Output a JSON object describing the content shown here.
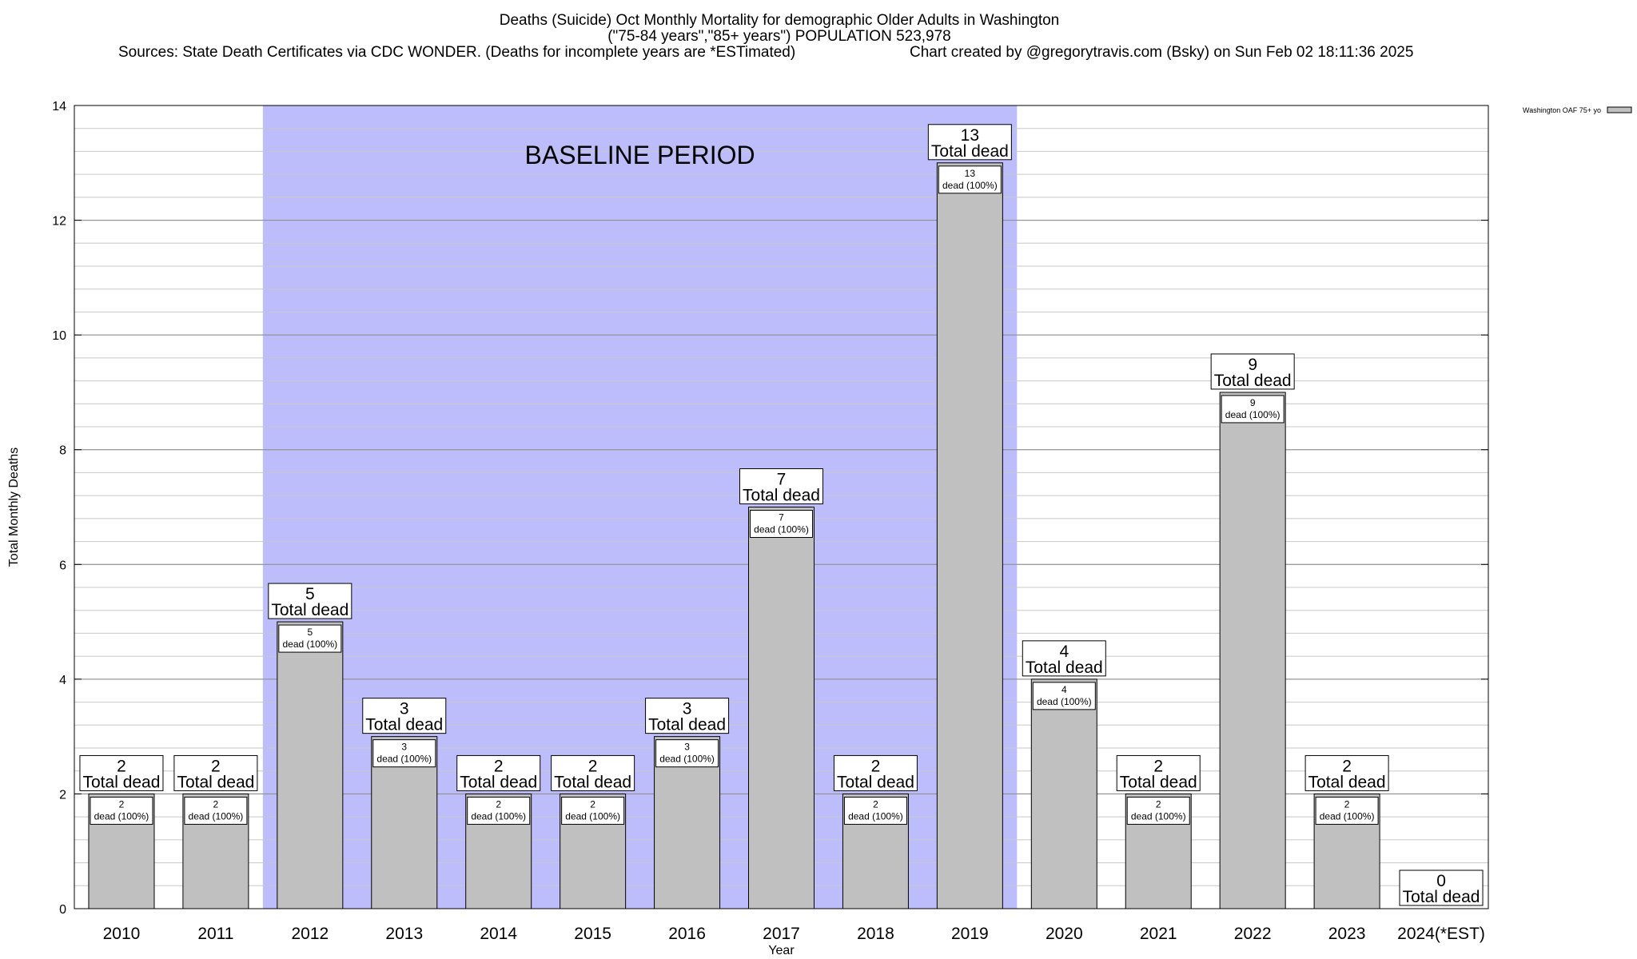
{
  "chart_data": {
    "type": "bar",
    "title_lines": [
      "Deaths (Suicide) Oct Monthly Mortality for demographic Older Adults in Washington",
      "(\"75-84 years\",\"85+ years\") POPULATION 523,978"
    ],
    "sources_text": "Sources: State Death Certificates via CDC WONDER. (Deaths for incomplete years are *ESTimated)",
    "credit_text": "Chart created by @gregorytravis.com (Bsky) on Sun Feb 02 18:11:36 2025",
    "xlabel": "Year",
    "ylabel": "Total Monthly Deaths",
    "ylim": [
      0,
      14
    ],
    "y_ticks": [
      0,
      2,
      4,
      6,
      8,
      10,
      12,
      14
    ],
    "y_minor_step": 0.4,
    "categories": [
      "2010",
      "2011",
      "2012",
      "2013",
      "2014",
      "2015",
      "2016",
      "2017",
      "2018",
      "2019",
      "2020",
      "2021",
      "2022",
      "2023",
      "2024(*EST)"
    ],
    "series": [
      {
        "name": "Washington OAF 75+ yo",
        "values": [
          2,
          2,
          5,
          3,
          2,
          2,
          3,
          7,
          2,
          13,
          4,
          2,
          9,
          2,
          0
        ],
        "color": "#c0c0c0"
      }
    ],
    "total_label_suffix": "Total dead",
    "inner_label_suffix": "dead (100%)",
    "baseline": {
      "label": "BASELINE PERIOD",
      "start_category": "2012",
      "end_category": "2019",
      "color": "#bdbdfb"
    },
    "legend_placement": "top-right",
    "grid": true
  }
}
